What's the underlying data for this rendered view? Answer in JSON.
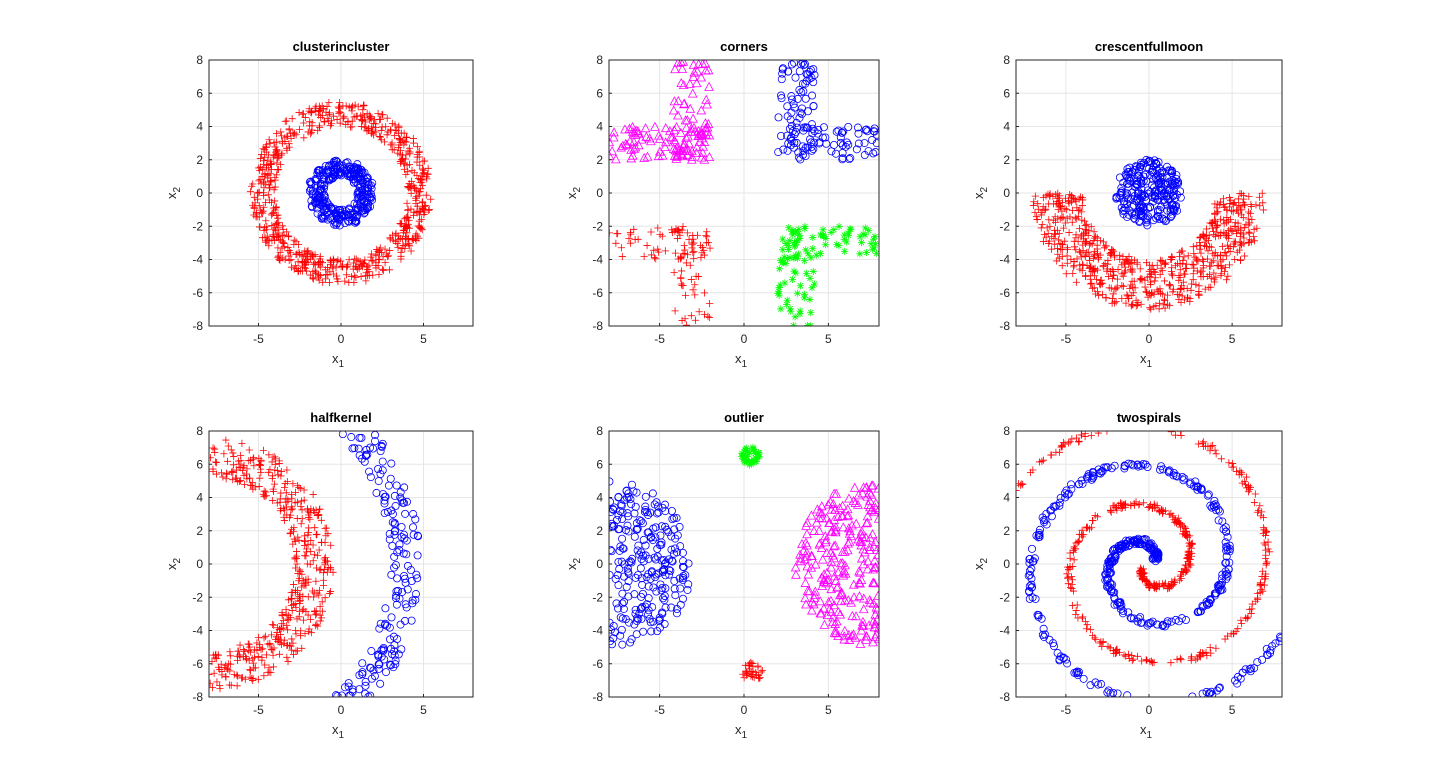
{
  "figure": {
    "panels": 6,
    "tick_x": [
      "-5",
      "0",
      "5"
    ],
    "tick_y": [
      "-8",
      "-6",
      "-4",
      "-2",
      "0",
      "2",
      "4",
      "6",
      "8"
    ],
    "xlabel": "x",
    "xlabel_sub": "1",
    "ylabel": "x",
    "ylabel_sub": "2"
  },
  "chart_data": [
    {
      "type": "scatter",
      "title": "clusterincluster",
      "xlabel": "x1",
      "ylabel": "x2",
      "xlim": [
        -8,
        8
      ],
      "ylim": [
        -8,
        8
      ],
      "grid": true,
      "series": [
        {
          "color": "#ff0000",
          "marker": "plus",
          "shape": "ring",
          "center": [
            0,
            0
          ],
          "r_min": 4.0,
          "r_max": 5.5,
          "n": 700
        },
        {
          "color": "#0000ff",
          "marker": "circle",
          "shape": "ring",
          "center": [
            0,
            0
          ],
          "r_min": 1.0,
          "r_max": 2.0,
          "n": 300
        }
      ]
    },
    {
      "type": "scatter",
      "title": "corners",
      "xlabel": "x1",
      "ylabel": "x2",
      "xlim": [
        -8,
        8
      ],
      "ylim": [
        -8,
        8
      ],
      "grid": true,
      "series": [
        {
          "color": "#ff00ff",
          "marker": "triangle",
          "shape": "Lshape",
          "quadrant": [
            -1,
            1
          ],
          "n": 140
        },
        {
          "color": "#0000ff",
          "marker": "circle",
          "shape": "Lshape",
          "quadrant": [
            1,
            1
          ],
          "n": 140
        },
        {
          "color": "#ff0000",
          "marker": "plus",
          "shape": "Lshape",
          "quadrant": [
            -1,
            -1
          ],
          "n": 100
        },
        {
          "color": "#00ff00",
          "marker": "star",
          "shape": "Lshape",
          "quadrant": [
            1,
            -1
          ],
          "n": 110
        }
      ]
    },
    {
      "type": "scatter",
      "title": "crescentfullmoon",
      "xlabel": "x1",
      "ylabel": "x2",
      "xlim": [
        -8,
        8
      ],
      "ylim": [
        -8,
        8
      ],
      "grid": true,
      "series": [
        {
          "color": "#0000ff",
          "marker": "circle",
          "shape": "disc",
          "center": [
            0,
            0
          ],
          "r_max": 2.0,
          "n": 250
        },
        {
          "color": "#ff0000",
          "marker": "plus",
          "shape": "lower-arc",
          "center": [
            0,
            0
          ],
          "r_min": 4.0,
          "r_max": 7.0,
          "n": 650
        }
      ]
    },
    {
      "type": "scatter",
      "title": "halfkernel",
      "xlabel": "x1",
      "ylabel": "x2",
      "xlim": [
        -8,
        8
      ],
      "ylim": [
        -8,
        8
      ],
      "grid": true,
      "series": [
        {
          "color": "#0000ff",
          "marker": "circle",
          "shape": "right-arc",
          "center": [
            -8,
            0
          ],
          "r_min": 11.0,
          "r_max": 12.8,
          "n": 400
        },
        {
          "color": "#ff0000",
          "marker": "plus",
          "shape": "right-arc",
          "center": [
            -8,
            0
          ],
          "r_min": 5.2,
          "r_max": 7.6,
          "n": 450
        }
      ]
    },
    {
      "type": "scatter",
      "title": "outlier",
      "xlabel": "x1",
      "ylabel": "x2",
      "xlim": [
        -8,
        8
      ],
      "ylim": [
        -8,
        8
      ],
      "grid": true,
      "series": [
        {
          "color": "#0000ff",
          "marker": "circle",
          "shape": "half-disc",
          "center": [
            -8,
            0
          ],
          "r_max": 5.0,
          "n": 250
        },
        {
          "color": "#ff00ff",
          "marker": "triangle",
          "shape": "half-disc-left",
          "center": [
            8,
            0
          ],
          "r_max": 5.0,
          "n": 250
        },
        {
          "color": "#00ff00",
          "marker": "star",
          "shape": "disc",
          "center": [
            0.4,
            6.5
          ],
          "r_max": 0.55,
          "n": 40
        },
        {
          "color": "#ff0000",
          "marker": "plus",
          "shape": "disc",
          "center": [
            0.5,
            -6.5
          ],
          "r_max": 0.6,
          "n": 35
        }
      ]
    },
    {
      "type": "scatter",
      "title": "twospirals",
      "xlabel": "x1",
      "ylabel": "x2",
      "xlim": [
        -8,
        8
      ],
      "ylim": [
        -8,
        8
      ],
      "grid": true,
      "series": [
        {
          "color": "#0000ff",
          "marker": "circle",
          "shape": "spiral",
          "phase": 0,
          "n": 450
        },
        {
          "color": "#ff0000",
          "marker": "plus",
          "shape": "spiral",
          "phase": 180,
          "n": 450
        }
      ]
    }
  ]
}
